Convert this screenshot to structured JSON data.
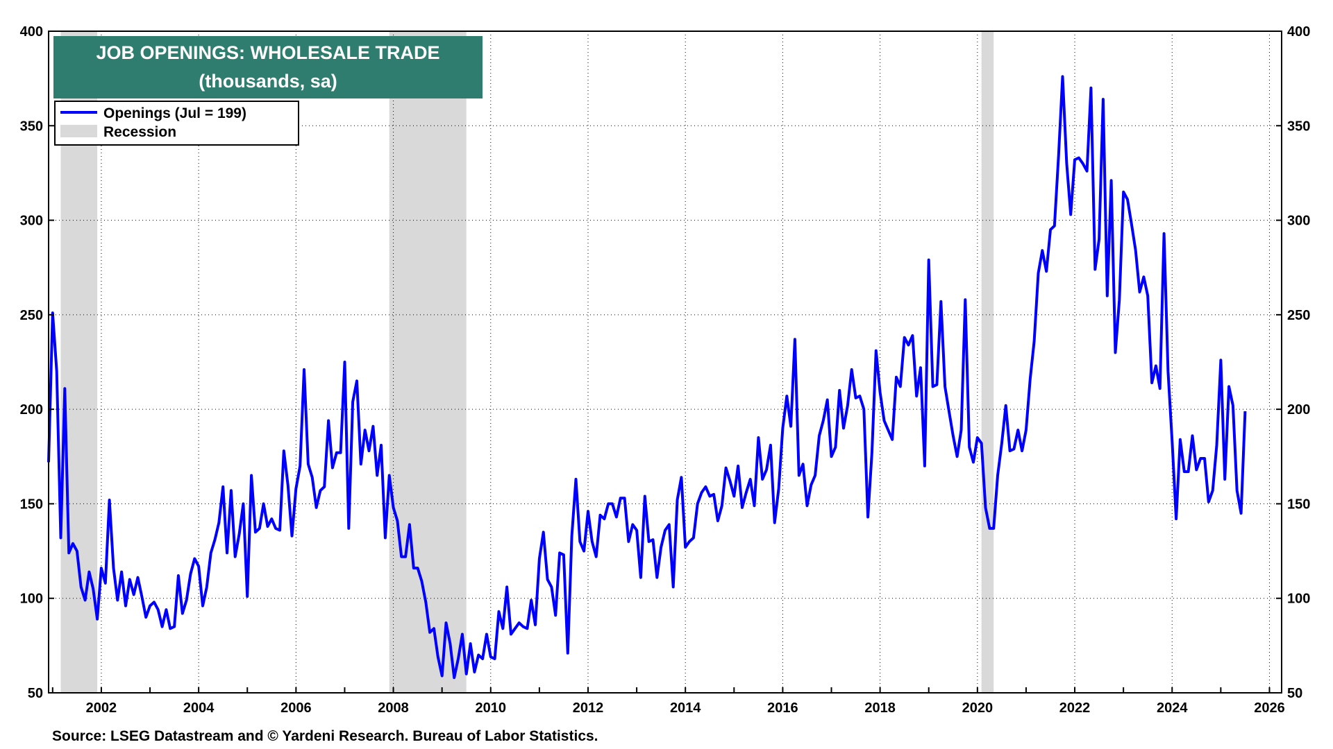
{
  "chart_data": {
    "type": "line",
    "title": "JOB OPENINGS: WHOLESALE TRADE",
    "subtitle": "(thousands, sa)",
    "source": "Source: LSEG Datastream and © Yardeni Research. Bureau of Labor Statistics.",
    "ylim": [
      50,
      400
    ],
    "xlim": [
      2000.917,
      2026.25
    ],
    "yticks": [
      50,
      100,
      150,
      200,
      250,
      300,
      350,
      400
    ],
    "xticks": [
      2002,
      2004,
      2006,
      2008,
      2010,
      2012,
      2014,
      2016,
      2018,
      2020,
      2022,
      2024,
      2026
    ],
    "grid": true,
    "legend_position": "top-left",
    "series": [
      {
        "name": "Openings (Jul = 199)",
        "color": "#0000ff",
        "start_date": "2000-12",
        "frequency": "monthly",
        "values": [
          172,
          251,
          220,
          132,
          211,
          124,
          129,
          125,
          106,
          99,
          114,
          105,
          89,
          116,
          108,
          152,
          116,
          99,
          114,
          96,
          110,
          102,
          111,
          101,
          90,
          96,
          98,
          94,
          85,
          94,
          84,
          85,
          112,
          92,
          99,
          113,
          121,
          117,
          96,
          106,
          124,
          131,
          140,
          159,
          124,
          157,
          122,
          134,
          150,
          101,
          165,
          135,
          137,
          150,
          138,
          142,
          137,
          136,
          178,
          160,
          133,
          158,
          170,
          221,
          171,
          164,
          148,
          157,
          159,
          194,
          169,
          177,
          177,
          225,
          137,
          204,
          215,
          171,
          189,
          178,
          191,
          165,
          181,
          132,
          165,
          148,
          141,
          122,
          122,
          139,
          116,
          116,
          109,
          98,
          82,
          84,
          69,
          59,
          87,
          76,
          58,
          68,
          81,
          60,
          76,
          61,
          70,
          68,
          81,
          69,
          68,
          93,
          84,
          106,
          81,
          84,
          87,
          85,
          84,
          99,
          86,
          121,
          135,
          110,
          106,
          91,
          124,
          123,
          71,
          133,
          163,
          130,
          125,
          146,
          130,
          122,
          144,
          142,
          150,
          150,
          143,
          153,
          153,
          130,
          139,
          136,
          111,
          154,
          130,
          131,
          111,
          127,
          136,
          139,
          106,
          152,
          164,
          127,
          130,
          132,
          150,
          156,
          159,
          154,
          155,
          141,
          149,
          169,
          162,
          154,
          170,
          148,
          156,
          163,
          149,
          185,
          163,
          168,
          181,
          140,
          158,
          190,
          207,
          191,
          237,
          165,
          171,
          149,
          160,
          165,
          186,
          194,
          205,
          175,
          180,
          210,
          190,
          202,
          221,
          206,
          207,
          200,
          143,
          177,
          231,
          209,
          194,
          189,
          184,
          217,
          212,
          238,
          234,
          239,
          207,
          222,
          170,
          279,
          212,
          213,
          257,
          212,
          199,
          186,
          175,
          189,
          258,
          180,
          172,
          185,
          182,
          148,
          137,
          137,
          165,
          182,
          202,
          178,
          179,
          189,
          178,
          189,
          216,
          236,
          272,
          284,
          273,
          295,
          297,
          334,
          376,
          330,
          303,
          332,
          333,
          330,
          326,
          370,
          274,
          290,
          364,
          260,
          321,
          230,
          258,
          315,
          311,
          298,
          284,
          262,
          270,
          260,
          214,
          223,
          211,
          293,
          220,
          183,
          142,
          184,
          167,
          167,
          186,
          168,
          174,
          174,
          151,
          157,
          181,
          226,
          163,
          212,
          202,
          157,
          145,
          199
        ]
      },
      {
        "name": "Recession",
        "color": "#d9d9d9",
        "periods": [
          [
            "2001-03",
            "2001-11"
          ],
          [
            "2007-12",
            "2009-06"
          ],
          [
            "2020-02",
            "2020-04"
          ]
        ]
      }
    ]
  }
}
